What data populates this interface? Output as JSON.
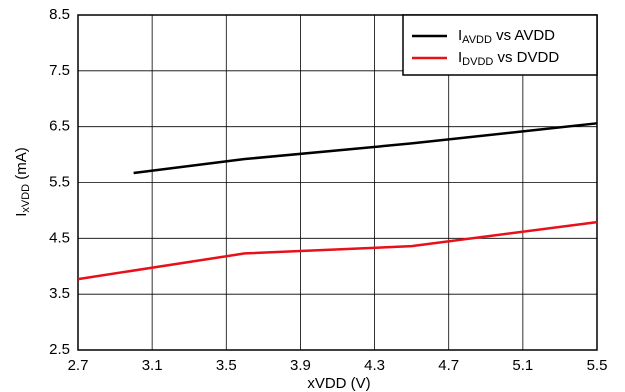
{
  "chart_data": {
    "type": "line",
    "x_label": "xVDD (V)",
    "y_label": "IxVDD (mA)",
    "xlim": [
      2.7,
      5.5
    ],
    "xticks": [
      2.7,
      3.1,
      3.5,
      3.9,
      4.3,
      4.7,
      5.1,
      5.5
    ],
    "ylim": [
      2.5,
      8.5
    ],
    "yticks": [
      2.5,
      3.5,
      4.5,
      5.5,
      6.5,
      7.5,
      8.5
    ],
    "grid": true,
    "legend": "top-right",
    "series": [
      {
        "name": "IAVDD vs AVDD",
        "color": "#000000",
        "x": [
          3.0,
          3.6,
          4.5,
          5.5
        ],
        "values": [
          5.67,
          5.92,
          6.2,
          6.56
        ]
      },
      {
        "name": "IDVDD vs DVDD",
        "color": "#e8101a",
        "x": [
          2.7,
          3.6,
          4.5,
          5.5
        ],
        "values": [
          3.77,
          4.23,
          4.36,
          4.79
        ]
      }
    ]
  }
}
